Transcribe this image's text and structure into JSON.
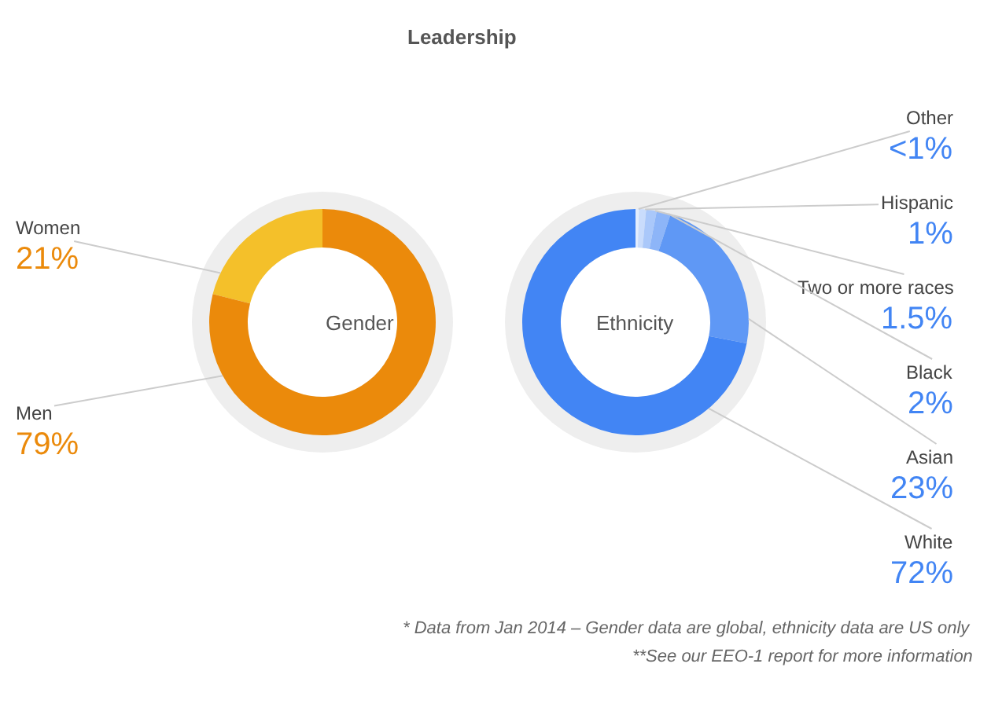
{
  "chart_data": [
    {
      "type": "donut",
      "title": "Leadership",
      "annotations": [
        "Gender"
      ],
      "categories": [
        "Women",
        "Men"
      ],
      "values": [
        21,
        79
      ],
      "colors": [
        "#f4c02a",
        "#eb8a0b"
      ],
      "value_labels": [
        "21%",
        "79%"
      ]
    },
    {
      "type": "donut",
      "annotations": [
        "Ethnicity",
        "* Data from Jan 2014 – Gender data are global, ethnicity data are US only",
        "**See our EEO-1 report for more information"
      ],
      "categories": [
        "Other",
        "Hispanic",
        "Two or more races",
        "Black",
        "Asian",
        "White"
      ],
      "values": [
        0.5,
        1,
        1.5,
        2,
        23,
        72
      ],
      "colors": [
        "#e3edfd",
        "#c9dcfc",
        "#aac8fa",
        "#8db5f8",
        "#5f98f5",
        "#4285f4"
      ],
      "value_labels": [
        "<1%",
        "1%",
        "1.5%",
        "2%",
        "23%",
        "72%"
      ]
    }
  ]
}
